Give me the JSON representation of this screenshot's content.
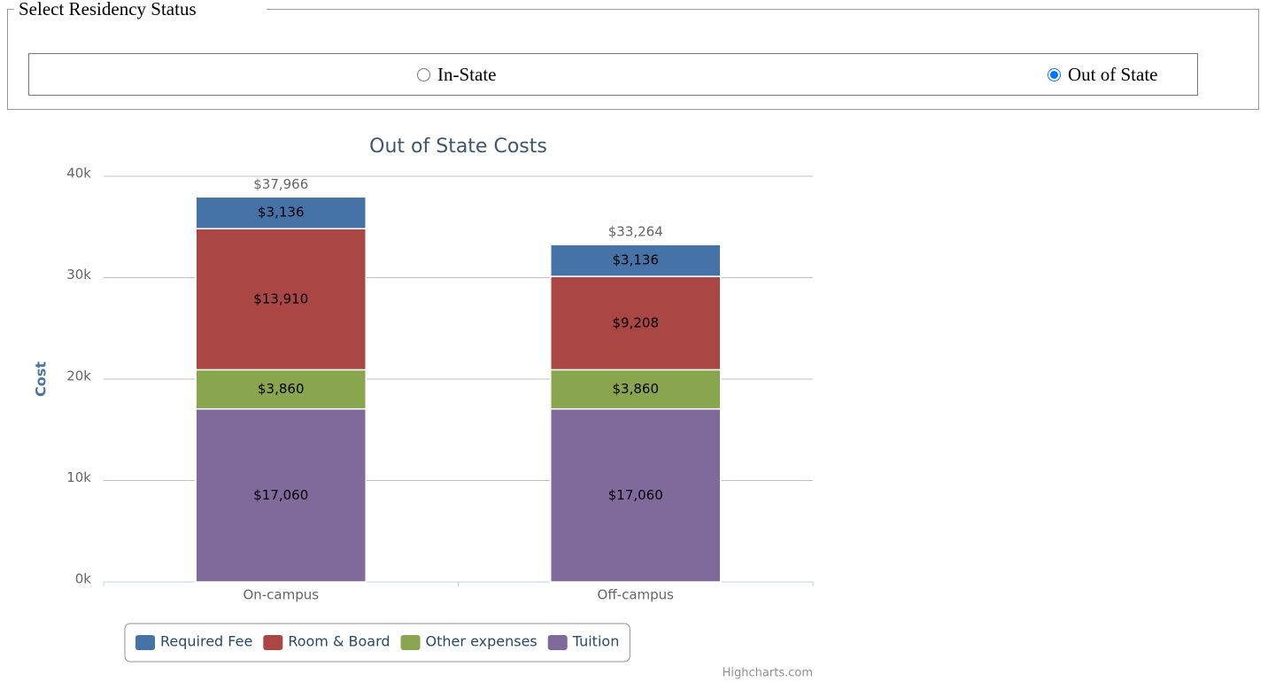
{
  "form": {
    "legend": "Select Residency Status",
    "options": [
      "In-State",
      "Out of State"
    ],
    "selected": "Out of State"
  },
  "chart_data": {
    "type": "bar",
    "stacked": true,
    "title": "Out of State Costs",
    "y_label": "Cost",
    "categories": [
      "On-campus",
      "Off-campus"
    ],
    "series": [
      {
        "name": "Required Fee",
        "color": "#4572a7",
        "values": [
          3136,
          3136
        ],
        "value_labels": [
          "$3,136",
          "$3,136"
        ]
      },
      {
        "name": "Room & Board",
        "color": "#aa4643",
        "values": [
          13910,
          9208
        ],
        "value_labels": [
          "$13,910",
          "$9,208"
        ]
      },
      {
        "name": "Other expenses",
        "color": "#89a54e",
        "values": [
          3860,
          3860
        ],
        "value_labels": [
          "$3,860",
          "$3,860"
        ]
      },
      {
        "name": "Tuition",
        "color": "#80699b",
        "values": [
          17060,
          17060
        ],
        "value_labels": [
          "$17,060",
          "$17,060"
        ]
      }
    ],
    "totals": [
      37966,
      33264
    ],
    "total_labels": [
      "$37,966",
      "$33,264"
    ],
    "ylim": [
      0,
      40000
    ],
    "yticks": [
      {
        "value": 0,
        "label": "0k"
      },
      {
        "value": 10000,
        "label": "10k"
      },
      {
        "value": 20000,
        "label": "20k"
      },
      {
        "value": 30000,
        "label": "30k"
      },
      {
        "value": 40000,
        "label": "40k"
      }
    ],
    "grid": true,
    "legend_position": "bottom",
    "credits": "Highcharts.com"
  }
}
